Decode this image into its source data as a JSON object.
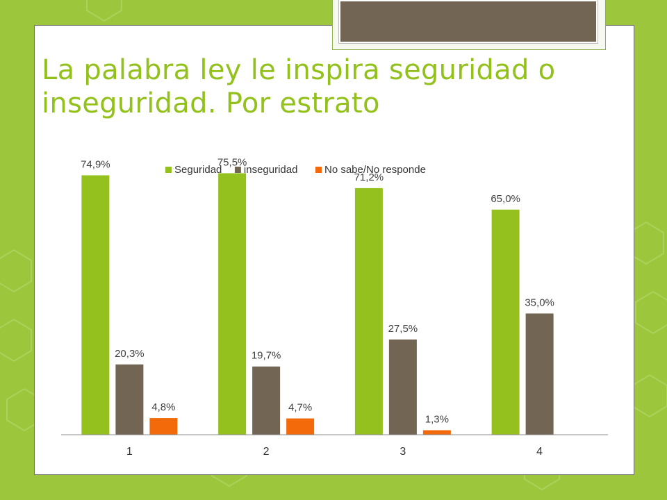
{
  "title": "La palabra ley le inspira seguridad o inseguridad. Por estrato",
  "colors": {
    "background": "#9cc63b",
    "title": "#93c11b",
    "seguridad": "#95c11f",
    "inseguridad": "#726553",
    "no_sabe": "#f26a0a"
  },
  "chart_data": {
    "type": "bar",
    "title": "",
    "xlabel": "",
    "ylabel": "",
    "categories": [
      "1",
      "2",
      "3",
      "4"
    ],
    "ylim": [
      0,
      80
    ],
    "grid": false,
    "legend_position": "top",
    "series": [
      {
        "name": "Seguridad",
        "color": "#95c11f",
        "values": [
          74.9,
          75.5,
          71.2,
          65.0
        ],
        "labels": [
          "74,9%",
          "75,5%",
          "71,2%",
          "65,0%"
        ]
      },
      {
        "name": "inseguridad",
        "color": "#726553",
        "values": [
          20.3,
          19.7,
          27.5,
          35.0
        ],
        "labels": [
          "20,3%",
          "19,7%",
          "27,5%",
          "35,0%"
        ]
      },
      {
        "name": "No sabe/No responde",
        "color": "#f26a0a",
        "values": [
          4.8,
          4.7,
          1.3,
          null
        ],
        "labels": [
          "4,8%",
          "4,7%",
          "1,3%",
          null
        ]
      }
    ]
  }
}
